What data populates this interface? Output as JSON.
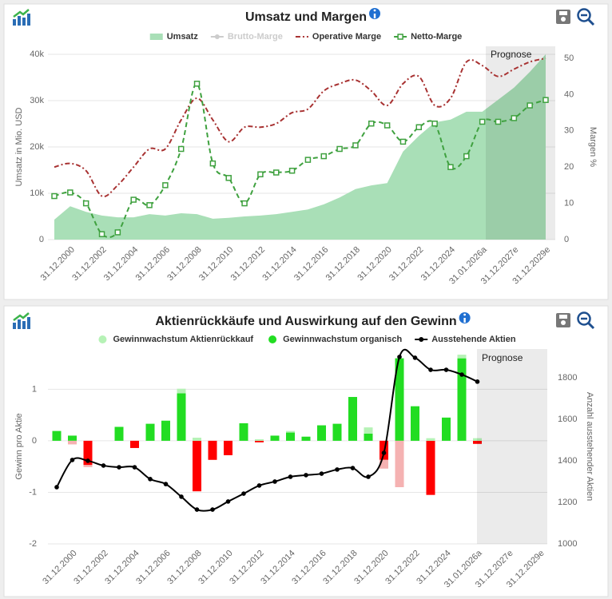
{
  "chart_data": [
    {
      "type": "combo",
      "title": "Umsatz und Margen",
      "y_label": "Umsatz in Mio. USD",
      "y2_label": "Margen %",
      "annotation": "Prognose",
      "categories": [
        null,
        "31.12.2000",
        null,
        "31.12.2002",
        null,
        "31.12.2004",
        null,
        "31.12.2006",
        null,
        "31.12.2008",
        null,
        "31.12.2010",
        null,
        "31.12.2012",
        null,
        "31.12.2014",
        null,
        "31.12.2016",
        null,
        "31.12.2018",
        null,
        "31.12.2020",
        null,
        "31.12.2022",
        null,
        "31.12.2024",
        null,
        "31.01.2026a",
        null,
        "31.12.2027e",
        null,
        "31.12.2029e"
      ],
      "ylim": [
        0,
        40000
      ],
      "yticks": [
        0,
        {
          "value": 10000,
          "label": "10k"
        },
        {
          "value": 20000,
          "label": "20k"
        },
        {
          "value": 30000,
          "label": "30k"
        },
        {
          "value": 40000,
          "label": "40k"
        }
      ],
      "y2lim": [
        0,
        51.1
      ],
      "y2ticks": [
        0,
        10,
        20,
        30,
        40,
        50
      ],
      "grid": true,
      "series": [
        {
          "name": "Umsatz",
          "kind": "area",
          "color": "#a9dfb7",
          "values": [
            4300,
            7200,
            6000,
            5200,
            4800,
            4800,
            5500,
            5200,
            5700,
            5500,
            4500,
            4700,
            5000,
            5200,
            5500,
            6000,
            6500,
            7600,
            9100,
            10900,
            11700,
            12200,
            19000,
            22400,
            25300,
            25900,
            27600,
            27600,
            30200,
            32800,
            36200,
            40000
          ]
        },
        {
          "name": "Brutto-Marge",
          "kind": "line",
          "color": "#c8c8c8",
          "visible": false,
          "marker": "circle"
        },
        {
          "name": "Operative Marge",
          "kind": "line",
          "color": "#a83232",
          "dash": "dashdot",
          "axis": "y2",
          "values": [
            20,
            21,
            19,
            12,
            15,
            20,
            25,
            25,
            33,
            39,
            33,
            27,
            31,
            31,
            32,
            35,
            36,
            41,
            43,
            44,
            41,
            37,
            43,
            45,
            37,
            39,
            49,
            48,
            45,
            47,
            49,
            50
          ]
        },
        {
          "name": "Netto-Marge",
          "kind": "line",
          "color": "#3fa13f",
          "dash": "dash",
          "marker": "square",
          "axis": "y2",
          "values": [
            12,
            13,
            10,
            1.5,
            2,
            11,
            9.5,
            15,
            25,
            43,
            21,
            17,
            10,
            18,
            18.5,
            19,
            22,
            23,
            25,
            26,
            32,
            31.5,
            27,
            31,
            32,
            20,
            23,
            32.5,
            32.5,
            33.5,
            37,
            38.5
          ]
        }
      ]
    },
    {
      "type": "combo",
      "title": "Aktienrückkäufe und Auswirkung auf den Gewinn",
      "y_label": "Gewinn pro Aktie",
      "y2_label": "Anzahl ausstehender Aktien",
      "annotation": "Prognose",
      "categories": [
        null,
        "31.12.2000",
        null,
        "31.12.2002",
        null,
        "31.12.2004",
        null,
        "31.12.2006",
        null,
        "31.12.2008",
        null,
        "31.12.2010",
        null,
        "31.12.2012",
        null,
        "31.12.2014",
        null,
        "31.12.2016",
        null,
        "31.12.2018",
        null,
        "31.12.2020",
        null,
        "31.12.2022",
        null,
        "31.12.2024",
        null,
        "31.01.2026a",
        null,
        "31.12.2027e",
        null,
        "31.12.2029e"
      ],
      "ylim": [
        -2,
        1.78
      ],
      "yticks": [
        -2,
        -1,
        0,
        1
      ],
      "y2lim": [
        1000,
        1938
      ],
      "y2ticks": [
        1000,
        1200,
        1400,
        1600,
        1800
      ],
      "grid": true,
      "series": [
        {
          "name": "Gewinnwachstum Aktienrückkauf",
          "kind": "bar",
          "color": "#b6f2b6",
          "negative_color": "#f5b2b2",
          "values": [
            0,
            -0.07,
            -0.04,
            0,
            0,
            0,
            0,
            0,
            0.09,
            0.06,
            0,
            0,
            0,
            0.03,
            0,
            0.03,
            0,
            0,
            0,
            0,
            0.12,
            -0.17,
            -0.9,
            0,
            0.05,
            0,
            0.07,
            0.05,
            null,
            null,
            null,
            null
          ]
        },
        {
          "name": "Gewinnwachstum organisch",
          "kind": "bar",
          "color": "#22dd22",
          "negative_color": "#ff0000",
          "values": [
            0.19,
            0.1,
            -0.47,
            0,
            0.27,
            -0.14,
            0.33,
            0.39,
            0.92,
            -0.98,
            -0.37,
            -0.28,
            0.34,
            -0.03,
            0.1,
            0.16,
            0.08,
            0.3,
            0.33,
            0.85,
            0.14,
            -0.37,
            1.6,
            0.67,
            -1.05,
            0.45,
            1.6,
            -0.06,
            null,
            null,
            null,
            null
          ]
        },
        {
          "name": "Ausstehende Aktien",
          "kind": "line",
          "color": "#000000",
          "marker": "dot",
          "axis": "y2",
          "values": [
            1273,
            1404,
            1400,
            1377,
            1369,
            1369,
            1312,
            1288,
            1227,
            1165,
            1165,
            1204,
            1242,
            1281,
            1300,
            1323,
            1331,
            1338,
            1358,
            1365,
            1323,
            1438,
            1900,
            1896,
            1838,
            1838,
            1815,
            1781,
            null,
            null,
            null,
            null
          ]
        }
      ]
    }
  ]
}
